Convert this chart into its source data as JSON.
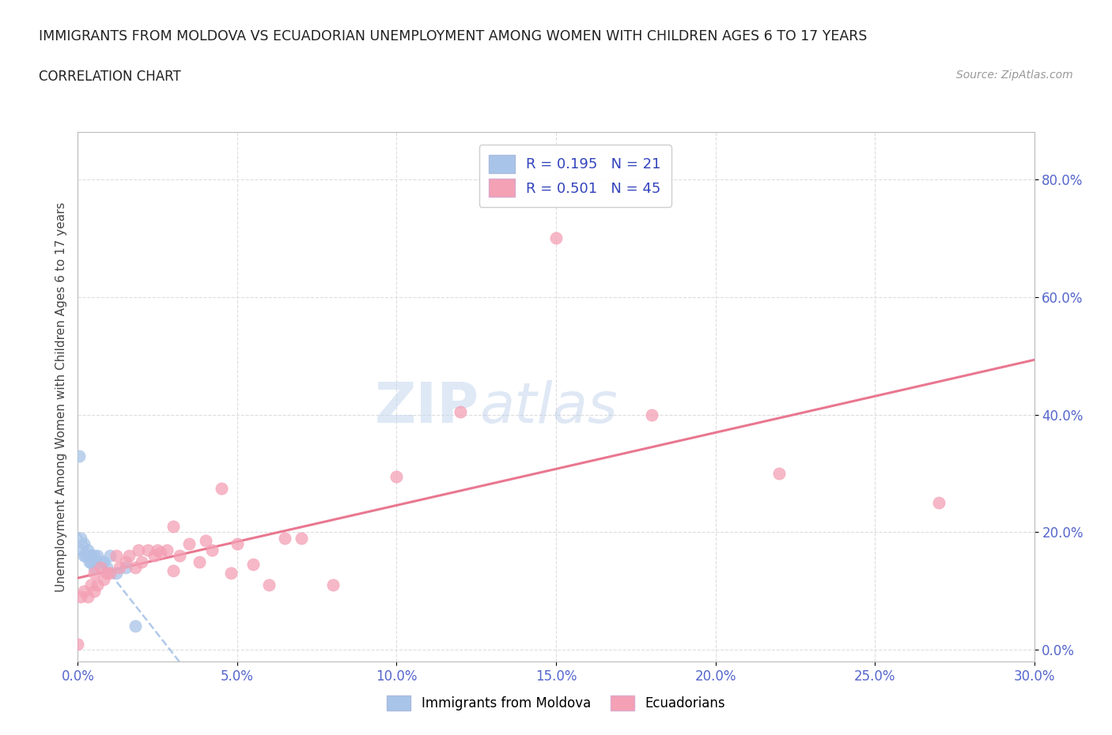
{
  "title": "IMMIGRANTS FROM MOLDOVA VS ECUADORIAN UNEMPLOYMENT AMONG WOMEN WITH CHILDREN AGES 6 TO 17 YEARS",
  "subtitle": "CORRELATION CHART",
  "source": "Source: ZipAtlas.com",
  "ylabel_label": "Unemployment Among Women with Children Ages 6 to 17 years",
  "xlim": [
    0.0,
    0.3
  ],
  "ylim": [
    -0.02,
    0.88
  ],
  "xticks": [
    0.0,
    0.05,
    0.1,
    0.15,
    0.2,
    0.25,
    0.3
  ],
  "yticks": [
    0.0,
    0.2,
    0.4,
    0.6,
    0.8
  ],
  "legend_r1": "R = 0.195",
  "legend_n1": "N = 21",
  "legend_r2": "R = 0.501",
  "legend_n2": "N = 45",
  "color_moldova": "#a8c4e8",
  "color_ecuador": "#f4a0b5",
  "color_moldova_line": "#a8c4e8",
  "color_ecuador_line": "#e8708a",
  "moldova_x": [
    0.0005,
    0.001,
    0.0015,
    0.002,
    0.002,
    0.0025,
    0.003,
    0.003,
    0.0035,
    0.004,
    0.004,
    0.005,
    0.005,
    0.006,
    0.007,
    0.008,
    0.009,
    0.01,
    0.012,
    0.015,
    0.018
  ],
  "moldova_y": [
    0.33,
    0.19,
    0.17,
    0.16,
    0.18,
    0.16,
    0.17,
    0.16,
    0.15,
    0.16,
    0.15,
    0.16,
    0.14,
    0.16,
    0.15,
    0.15,
    0.14,
    0.16,
    0.13,
    0.14,
    0.04
  ],
  "ecuador_x": [
    0.0,
    0.001,
    0.002,
    0.003,
    0.004,
    0.005,
    0.005,
    0.006,
    0.007,
    0.008,
    0.009,
    0.01,
    0.012,
    0.013,
    0.015,
    0.016,
    0.018,
    0.019,
    0.02,
    0.022,
    0.024,
    0.025,
    0.026,
    0.028,
    0.03,
    0.032,
    0.035,
    0.038,
    0.04,
    0.042,
    0.045,
    0.048,
    0.05,
    0.055,
    0.06,
    0.065,
    0.07,
    0.1,
    0.12,
    0.15,
    0.18,
    0.22,
    0.27,
    0.03,
    0.08
  ],
  "ecuador_y": [
    0.01,
    0.09,
    0.1,
    0.09,
    0.11,
    0.1,
    0.13,
    0.11,
    0.14,
    0.12,
    0.13,
    0.13,
    0.16,
    0.14,
    0.15,
    0.16,
    0.14,
    0.17,
    0.15,
    0.17,
    0.16,
    0.17,
    0.165,
    0.17,
    0.135,
    0.16,
    0.18,
    0.15,
    0.185,
    0.17,
    0.275,
    0.13,
    0.18,
    0.145,
    0.11,
    0.19,
    0.19,
    0.295,
    0.405,
    0.7,
    0.4,
    0.3,
    0.25,
    0.21,
    0.11
  ]
}
